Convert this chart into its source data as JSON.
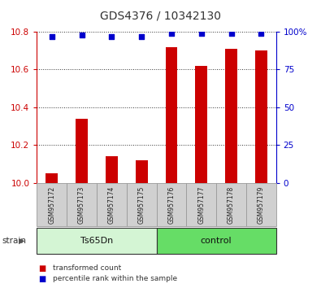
{
  "title": "GDS4376 / 10342130",
  "samples": [
    "GSM957172",
    "GSM957173",
    "GSM957174",
    "GSM957175",
    "GSM957176",
    "GSM957177",
    "GSM957178",
    "GSM957179"
  ],
  "red_values": [
    10.05,
    10.34,
    10.14,
    10.12,
    10.72,
    10.62,
    10.71,
    10.7
  ],
  "blue_values": [
    97,
    98,
    97,
    97,
    99,
    99,
    99,
    99
  ],
  "ylim_left": [
    10.0,
    10.8
  ],
  "ylim_right": [
    0,
    100
  ],
  "yticks_left": [
    10.0,
    10.2,
    10.4,
    10.6,
    10.8
  ],
  "yticks_right": [
    0,
    25,
    50,
    75,
    100
  ],
  "ytick_right_labels": [
    "0",
    "25",
    "50",
    "75",
    "100%"
  ],
  "groups": [
    {
      "label": "Ts65Dn",
      "start": 0,
      "end": 4,
      "color": "#d4f5d4"
    },
    {
      "label": "control",
      "start": 4,
      "end": 8,
      "color": "#66dd66"
    }
  ],
  "group_label_prefix": "strain",
  "legend_items": [
    {
      "label": "transformed count",
      "color": "#cc0000"
    },
    {
      "label": "percentile rank within the sample",
      "color": "#0000cc"
    }
  ],
  "bar_color": "#cc0000",
  "dot_color": "#0000cc",
  "plot_bg": "#ffffff",
  "title_color": "#333333",
  "left_axis_color": "#cc0000",
  "right_axis_color": "#0000cc",
  "sample_box_color": "#d0d0d0",
  "bar_width": 0.4,
  "dot_size": 20
}
